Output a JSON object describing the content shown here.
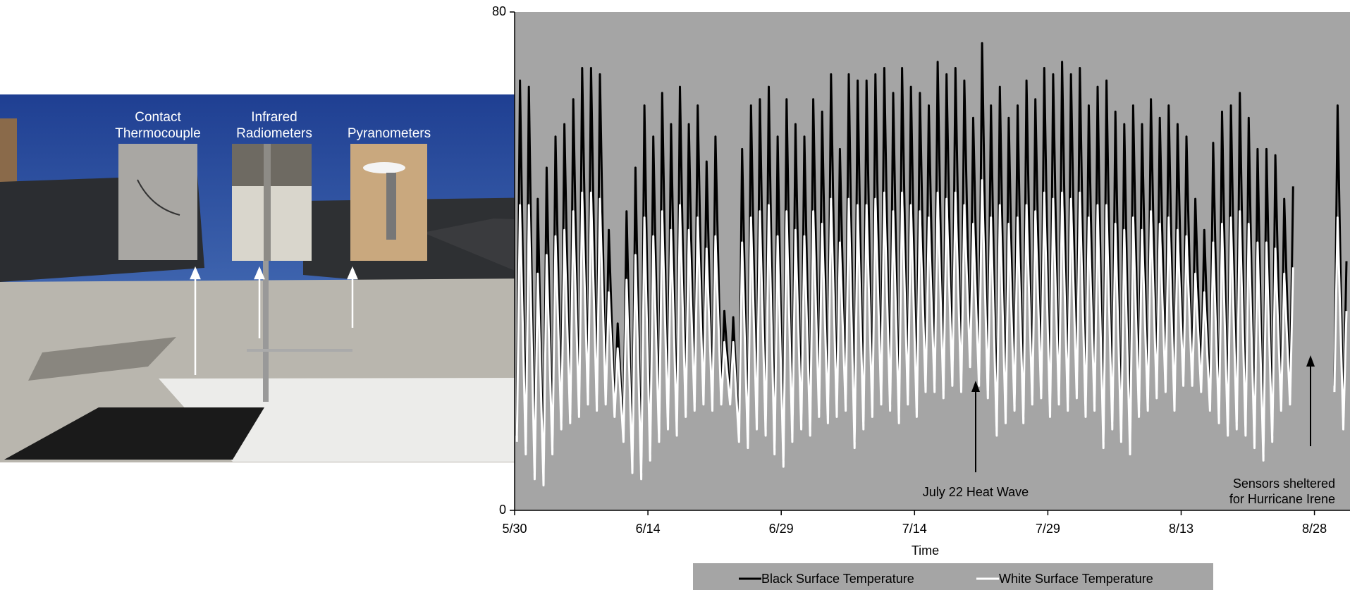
{
  "photo": {
    "labels": [
      [
        "Contact",
        "Thermocouple"
      ],
      [
        "Infrared",
        "Radiometers"
      ],
      [
        "Pyranometers"
      ]
    ]
  },
  "chart_data": {
    "type": "line",
    "x_label": "Time",
    "xlim": [
      0,
      94
    ],
    "ylim": [
      0,
      80
    ],
    "yticks": [
      0,
      80
    ],
    "xticks": [
      {
        "value": 0,
        "label": "5/30"
      },
      {
        "value": 15,
        "label": "6/14"
      },
      {
        "value": 30,
        "label": "6/29"
      },
      {
        "value": 45,
        "label": "7/14"
      },
      {
        "value": 60,
        "label": "7/29"
      },
      {
        "value": 75,
        "label": "8/13"
      },
      {
        "value": 90,
        "label": "8/28"
      }
    ],
    "grid": false,
    "legend": "bottom",
    "background": "#a5a5a5",
    "annotations": [
      [
        "July 22 Heat Wave"
      ],
      [
        "Sensors sheltered",
        "for Hurricane Irene"
      ]
    ],
    "x": [
      0.25,
      0.6,
      1.25,
      1.6,
      2.25,
      2.6,
      3.25,
      3.6,
      4.25,
      4.6,
      5.25,
      5.6,
      6.25,
      6.6,
      7.25,
      7.6,
      8.25,
      8.6,
      9.25,
      9.6,
      10.25,
      10.6,
      11.25,
      11.6,
      12.25,
      12.6,
      13.25,
      13.6,
      14.25,
      14.6,
      15.25,
      15.6,
      16.25,
      16.6,
      17.25,
      17.6,
      18.25,
      18.6,
      19.25,
      19.6,
      20.25,
      20.6,
      21.25,
      21.6,
      22.25,
      22.6,
      23.25,
      23.6,
      24.25,
      24.6,
      25.25,
      25.6,
      26.25,
      26.6,
      27.25,
      27.6,
      28.25,
      28.6,
      29.25,
      29.6,
      30.25,
      30.6,
      31.25,
      31.6,
      32.25,
      32.6,
      33.25,
      33.6,
      34.25,
      34.6,
      35.25,
      35.6,
      36.25,
      36.6,
      37.25,
      37.6,
      38.25,
      38.6,
      39.25,
      39.6,
      40.25,
      40.6,
      41.25,
      41.6,
      42.25,
      42.6,
      43.25,
      43.6,
      44.25,
      44.6,
      45.25,
      45.6,
      46.25,
      46.6,
      47.25,
      47.6,
      48.25,
      48.6,
      49.25,
      49.6,
      50.25,
      50.6,
      51.25,
      51.6,
      52.25,
      52.6,
      53.25,
      53.6,
      54.25,
      54.6,
      55.25,
      55.6,
      56.25,
      56.6,
      57.25,
      57.6,
      58.25,
      58.6,
      59.25,
      59.6,
      60.25,
      60.6,
      61.25,
      61.6,
      62.25,
      62.6,
      63.25,
      63.6,
      64.25,
      64.6,
      65.25,
      65.6,
      66.25,
      66.6,
      67.25,
      67.6,
      68.25,
      68.6,
      69.25,
      69.6,
      70.25,
      70.6,
      71.25,
      71.6,
      72.25,
      72.6,
      73.25,
      73.6,
      74.25,
      74.6,
      75.25,
      75.6,
      76.25,
      76.6,
      77.25,
      77.6,
      78.25,
      78.6,
      79.25,
      79.6,
      80.25,
      80.6,
      81.25,
      81.6,
      82.25,
      82.6,
      83.25,
      83.6,
      84.25,
      84.6,
      85.25,
      85.6,
      86.25,
      86.6,
      87.25,
      87.6,
      88.25,
      88.6,
      89.25,
      89.6,
      90.25,
      90.6,
      91.25,
      91.6,
      92.25,
      92.6,
      93.25,
      93.6
    ],
    "series": [
      {
        "name": "Black Surface Temperature",
        "color": "#000000",
        "values": [
          12,
          69,
          10,
          68,
          6,
          50,
          5,
          55,
          10,
          60,
          14,
          62,
          15,
          66,
          16,
          71,
          18,
          71,
          17,
          70,
          18,
          45,
          16,
          30,
          12,
          48,
          7,
          55,
          6,
          65,
          9,
          60,
          12,
          67,
          14,
          62,
          13,
          68,
          16,
          62,
          17,
          65,
          18,
          56,
          17,
          60,
          18,
          32,
          18,
          31,
          12,
          58,
          11,
          65,
          14,
          66,
          13,
          68,
          10,
          60,
          8,
          66,
          12,
          62,
          14,
          60,
          13,
          66,
          16,
          64,
          15,
          70,
          16,
          58,
          17,
          70,
          11,
          69,
          14,
          69,
          16,
          70,
          18,
          71,
          17,
          67,
          15,
          71,
          18,
          68,
          16,
          67,
          20,
          65,
          20,
          72,
          19,
          70,
          21,
          71,
          20,
          69,
          24,
          63,
          21,
          75,
          19,
          65,
          13,
          68,
          15,
          63,
          17,
          65,
          15,
          69,
          18,
          66,
          19,
          71,
          16,
          70,
          18,
          72,
          17,
          70,
          19,
          71,
          16,
          65,
          17,
          68,
          11,
          69,
          14,
          64,
          12,
          62,
          10,
          65,
          16,
          62,
          17,
          66,
          19,
          63,
          20,
          65,
          17,
          62,
          21,
          60,
          21,
          50,
          20,
          45,
          17,
          59,
          15,
          64,
          13,
          65,
          14,
          67,
          13,
          63,
          11,
          58,
          9,
          58,
          12,
          57,
          17,
          50,
          18,
          52,
          null,
          null,
          null,
          null,
          null,
          null,
          null,
          null,
          20,
          65,
          14,
          40
        ]
      },
      {
        "name": "White Surface Temperature",
        "color": "#ffffff",
        "values": [
          11,
          49,
          9,
          49,
          5,
          38,
          4,
          41,
          9,
          44,
          13,
          45,
          14,
          48,
          15,
          51,
          17,
          51,
          16,
          50,
          17,
          35,
          15,
          26,
          11,
          37,
          6,
          41,
          5,
          47,
          8,
          44,
          11,
          48,
          13,
          45,
          12,
          49,
          15,
          45,
          16,
          47,
          17,
          42,
          16,
          44,
          17,
          27,
          17,
          27,
          11,
          43,
          10,
          47,
          13,
          48,
          12,
          49,
          9,
          44,
          7,
          48,
          11,
          45,
          13,
          44,
          12,
          48,
          15,
          46,
          14,
          50,
          15,
          43,
          16,
          50,
          10,
          49,
          13,
          49,
          15,
          50,
          17,
          51,
          16,
          48,
          14,
          51,
          17,
          49,
          15,
          48,
          19,
          47,
          19,
          51,
          18,
          50,
          20,
          51,
          19,
          49,
          23,
          46,
          20,
          53,
          18,
          47,
          12,
          49,
          14,
          46,
          16,
          47,
          14,
          49,
          17,
          48,
          18,
          51,
          15,
          50,
          17,
          51,
          16,
          50,
          18,
          51,
          15,
          47,
          16,
          49,
          10,
          49,
          13,
          46,
          11,
          45,
          9,
          47,
          15,
          45,
          16,
          48,
          18,
          46,
          19,
          47,
          16,
          45,
          20,
          44,
          20,
          38,
          19,
          35,
          16,
          43,
          14,
          46,
          12,
          47,
          13,
          48,
          12,
          46,
          10,
          43,
          8,
          43,
          11,
          42,
          16,
          38,
          17,
          39,
          null,
          null,
          null,
          null,
          null,
          null,
          null,
          null,
          19,
          47,
          13,
          32
        ]
      }
    ]
  }
}
